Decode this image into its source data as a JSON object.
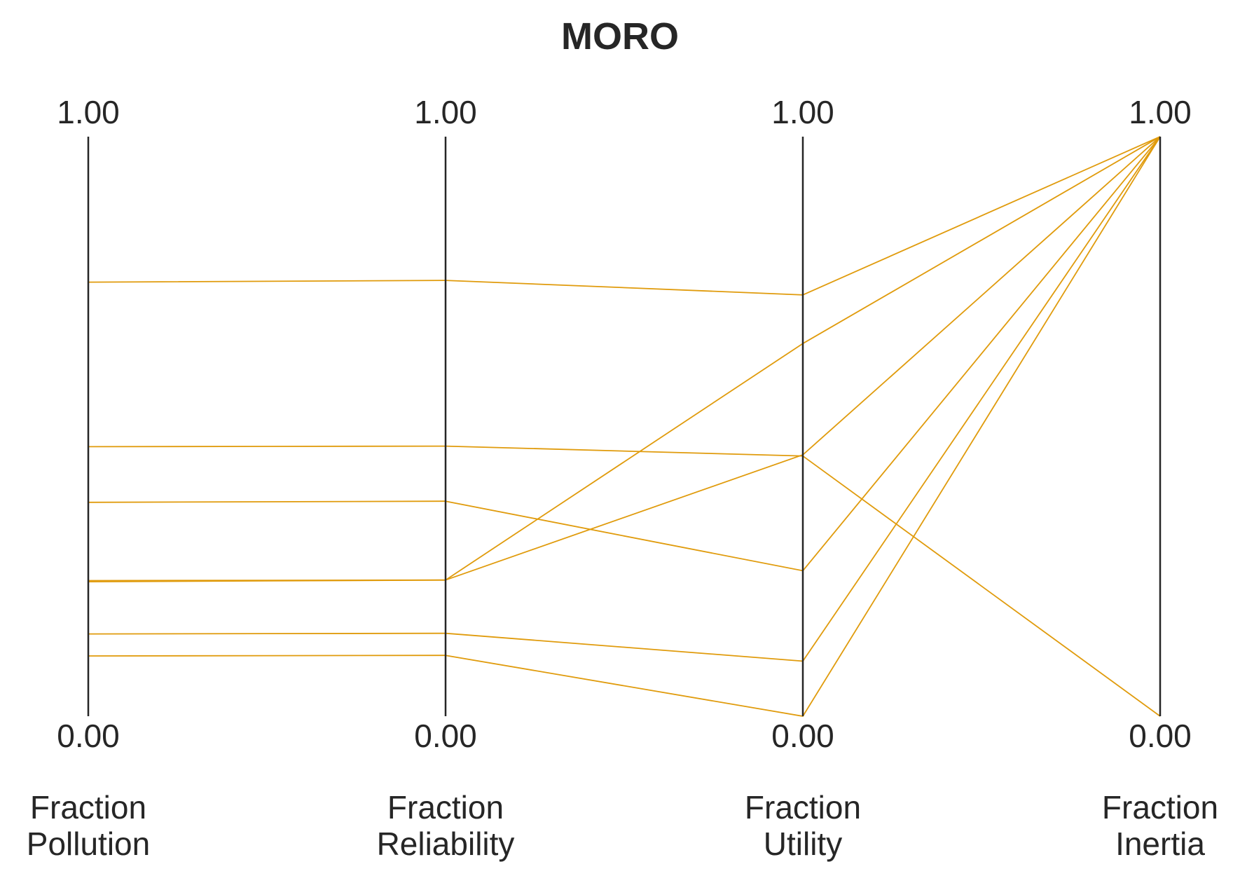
{
  "chart_data": {
    "type": "line",
    "title": "MORO",
    "axes": [
      {
        "label": [
          "Fraction",
          "Pollution"
        ],
        "max_label": "1.00",
        "min_label": "0.00"
      },
      {
        "label": [
          "Fraction",
          "Reliability"
        ],
        "max_label": "1.00",
        "min_label": "0.00"
      },
      {
        "label": [
          "Fraction",
          "Utility"
        ],
        "max_label": "1.00",
        "min_label": "0.00"
      },
      {
        "label": [
          "Fraction",
          "Inertia"
        ],
        "max_label": "1.00",
        "min_label": "0.00"
      }
    ],
    "ylim": [
      0,
      1
    ],
    "line_color": "#E09B0C",
    "axis_color": "#262626",
    "lines": [
      {
        "values": [
          0.749,
          0.752,
          0.727,
          1.0
        ]
      },
      {
        "values": [
          0.465,
          0.466,
          0.449,
          0.0
        ]
      },
      {
        "values": [
          0.369,
          0.371,
          0.251,
          1.0
        ]
      },
      {
        "values": [
          0.234,
          0.235,
          0.643,
          1.0
        ]
      },
      {
        "values": [
          0.232,
          0.235,
          0.451,
          1.0
        ]
      },
      {
        "values": [
          0.142,
          0.143,
          0.095,
          1.0
        ]
      },
      {
        "values": [
          0.104,
          0.105,
          0.0,
          1.0
        ]
      }
    ]
  }
}
